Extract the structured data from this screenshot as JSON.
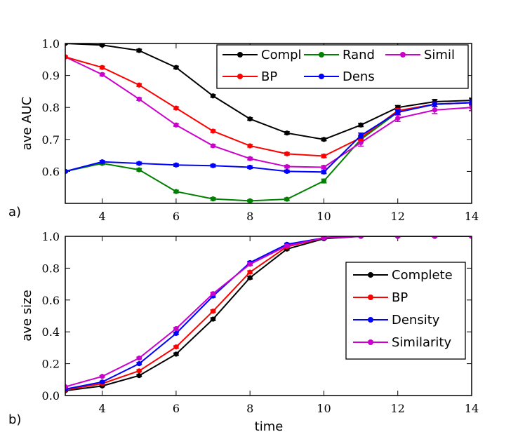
{
  "chart_data": [
    {
      "type": "line",
      "panel_label": "a)",
      "xlabel": "",
      "ylabel": "ave AUC",
      "xlim": [
        3,
        14
      ],
      "ylim": [
        0.5,
        1.0
      ],
      "xticks": [
        "4",
        "6",
        "8",
        "10",
        "12",
        "14"
      ],
      "yticks": [
        "0.6",
        "0.7",
        "0.8",
        "0.9",
        "1.0"
      ],
      "ytick_values": [
        0.6,
        0.7,
        0.8,
        0.9,
        1.0
      ],
      "xtick_values": [
        4,
        6,
        8,
        10,
        12,
        14
      ],
      "legend_position": "top-right",
      "series": [
        {
          "name": "Compl",
          "color": "#000000",
          "x": [
            3,
            4,
            5,
            6,
            7,
            8,
            9,
            10,
            11,
            12,
            13,
            14
          ],
          "values": [
            1.0,
            0.995,
            0.978,
            0.925,
            0.836,
            0.764,
            0.72,
            0.7,
            0.745,
            0.8,
            0.818,
            0.822
          ],
          "err": [
            0.002,
            0.003,
            0.004,
            0.004,
            0.004,
            0.004,
            0.004,
            0.004,
            0.005,
            0.006,
            0.007,
            0.007
          ]
        },
        {
          "name": "Rand",
          "color": "#008000",
          "x": [
            3,
            4,
            5,
            6,
            7,
            8,
            9,
            10,
            11,
            12,
            13,
            14
          ],
          "values": [
            0.6,
            0.625,
            0.605,
            0.537,
            0.514,
            0.508,
            0.513,
            0.57,
            0.7,
            0.785,
            0.81,
            0.815
          ],
          "err": [
            0.003,
            0.004,
            0.004,
            0.004,
            0.004,
            0.003,
            0.004,
            0.006,
            0.009,
            0.008,
            0.007,
            0.007
          ]
        },
        {
          "name": "Simil",
          "color": "#cc00cc",
          "x": [
            3,
            4,
            5,
            6,
            7,
            8,
            9,
            10,
            11,
            12,
            13,
            14
          ],
          "values": [
            0.958,
            0.903,
            0.826,
            0.745,
            0.68,
            0.64,
            0.615,
            0.613,
            0.69,
            0.766,
            0.792,
            0.8
          ],
          "err": [
            0.003,
            0.004,
            0.004,
            0.004,
            0.004,
            0.004,
            0.004,
            0.005,
            0.011,
            0.01,
            0.011,
            0.01
          ]
        },
        {
          "name": "BP",
          "color": "#ff0000",
          "x": [
            3,
            4,
            5,
            6,
            7,
            8,
            9,
            10,
            11,
            12,
            13,
            14
          ],
          "values": [
            0.958,
            0.925,
            0.87,
            0.798,
            0.726,
            0.68,
            0.655,
            0.648,
            0.705,
            0.79,
            0.81,
            0.815
          ],
          "err": [
            0.003,
            0.004,
            0.004,
            0.004,
            0.004,
            0.004,
            0.004,
            0.005,
            0.008,
            0.007,
            0.007,
            0.007
          ]
        },
        {
          "name": "Dens",
          "color": "#0000ff",
          "x": [
            3,
            4,
            5,
            6,
            7,
            8,
            9,
            10,
            11,
            12,
            13,
            14
          ],
          "values": [
            0.6,
            0.63,
            0.625,
            0.62,
            0.618,
            0.613,
            0.6,
            0.598,
            0.712,
            0.785,
            0.81,
            0.815
          ],
          "err": [
            0.003,
            0.004,
            0.004,
            0.004,
            0.004,
            0.004,
            0.004,
            0.005,
            0.008,
            0.007,
            0.007,
            0.007
          ]
        }
      ],
      "legend_order": [
        {
          "name": "Compl",
          "color": "#000000"
        },
        {
          "name": "Rand",
          "color": "#008000"
        },
        {
          "name": "Simil",
          "color": "#cc00cc"
        },
        {
          "name": "BP",
          "color": "#ff0000"
        },
        {
          "name": "Dens",
          "color": "#0000ff"
        }
      ]
    },
    {
      "type": "line",
      "panel_label": "b)",
      "xlabel": "time",
      "ylabel": "ave size",
      "xlim": [
        3,
        14
      ],
      "ylim": [
        0.0,
        1.0
      ],
      "xticks": [
        "4",
        "6",
        "8",
        "10",
        "12",
        "14"
      ],
      "yticks": [
        "0.0",
        "0.2",
        "0.4",
        "0.6",
        "0.8",
        "1.0"
      ],
      "ytick_values": [
        0.0,
        0.2,
        0.4,
        0.6,
        0.8,
        1.0
      ],
      "xtick_values": [
        4,
        6,
        8,
        10,
        12,
        14
      ],
      "legend_position": "center-right",
      "series": [
        {
          "name": "Complete",
          "color": "#000000",
          "x": [
            3,
            4,
            5,
            6,
            7,
            8,
            9,
            10,
            11,
            12,
            13,
            14
          ],
          "values": [
            0.03,
            0.06,
            0.125,
            0.26,
            0.48,
            0.74,
            0.92,
            0.985,
            1.0,
            1.0,
            1.0,
            1.0
          ],
          "err": [
            0.004,
            0.005,
            0.006,
            0.007,
            0.008,
            0.008,
            0.006,
            0.004,
            0.002,
            0.002,
            0.002,
            0.002
          ]
        },
        {
          "name": "BP",
          "color": "#ff0000",
          "x": [
            3,
            4,
            5,
            6,
            7,
            8,
            9,
            10,
            11,
            12,
            13,
            14
          ],
          "values": [
            0.035,
            0.075,
            0.155,
            0.305,
            0.53,
            0.775,
            0.935,
            0.99,
            1.0,
            1.0,
            1.0,
            1.0
          ],
          "err": [
            0.004,
            0.005,
            0.006,
            0.007,
            0.008,
            0.008,
            0.006,
            0.004,
            0.002,
            0.002,
            0.002,
            0.002
          ]
        },
        {
          "name": "Density",
          "color": "#0000ff",
          "x": [
            3,
            4,
            5,
            6,
            7,
            8,
            9,
            10,
            11,
            12,
            13,
            14
          ],
          "values": [
            0.04,
            0.085,
            0.2,
            0.39,
            0.625,
            0.835,
            0.95,
            0.99,
            1.0,
            1.0,
            1.0,
            1.0
          ],
          "err": [
            0.004,
            0.005,
            0.006,
            0.007,
            0.008,
            0.008,
            0.006,
            0.004,
            0.002,
            0.002,
            0.002,
            0.002
          ]
        },
        {
          "name": "Similarity",
          "color": "#cc00cc",
          "x": [
            3,
            4,
            5,
            6,
            7,
            8,
            9,
            10,
            11,
            12,
            13,
            14
          ],
          "values": [
            0.055,
            0.12,
            0.235,
            0.42,
            0.64,
            0.825,
            0.94,
            0.99,
            1.0,
            1.0,
            1.0,
            1.0
          ],
          "err": [
            0.004,
            0.005,
            0.006,
            0.007,
            0.008,
            0.008,
            0.006,
            0.004,
            0.002,
            0.002,
            0.002,
            0.002
          ]
        }
      ],
      "legend_order": [
        {
          "name": "Complete",
          "color": "#000000"
        },
        {
          "name": "BP",
          "color": "#ff0000"
        },
        {
          "name": "Density",
          "color": "#0000ff"
        },
        {
          "name": "Similarity",
          "color": "#cc00cc"
        }
      ]
    }
  ]
}
